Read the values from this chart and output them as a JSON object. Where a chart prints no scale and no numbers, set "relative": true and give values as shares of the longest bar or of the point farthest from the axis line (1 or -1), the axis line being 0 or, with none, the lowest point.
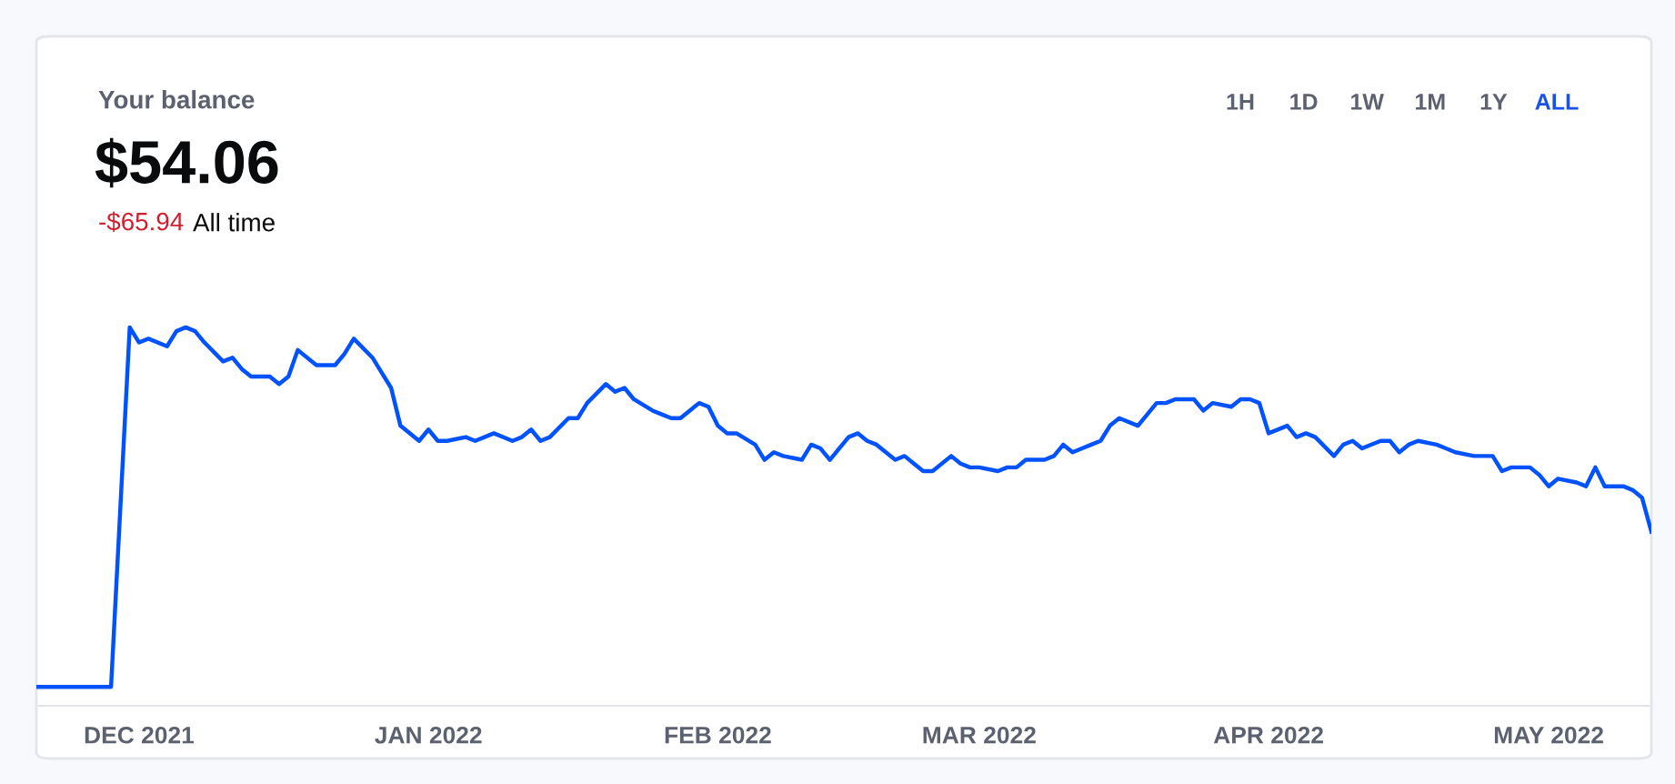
{
  "chart_data": {
    "type": "line",
    "relative": true,
    "legend": false,
    "grid": false,
    "marker": "none",
    "line_style": "solid",
    "annotations": [
      "Your balance",
      "$54.06",
      "-$65.94",
      "All time",
      "1H",
      "1D",
      "1W",
      "1M",
      "1Y",
      "ALL"
    ],
    "xlim": [
      "2021-11-20",
      "2022-05-12"
    ],
    "xticks": [
      {
        "value": "2021-12-01",
        "label": "DEC 2021"
      },
      {
        "value": "2022-01-01",
        "label": "JAN 2022"
      },
      {
        "value": "2022-02-01",
        "label": "FEB 2022"
      },
      {
        "value": "2022-03-01",
        "label": "MAR 2022"
      },
      {
        "value": "2022-04-01",
        "label": "APR 2022"
      },
      {
        "value": "2022-05-01",
        "label": "MAY 2022"
      }
    ],
    "series": [
      {
        "color": "#0052ff",
        "x": [
          "2021-11-20",
          "2021-11-28",
          "2021-11-30",
          "2021-12-01",
          "2021-12-02",
          "2021-12-04",
          "2021-12-05",
          "2021-12-06",
          "2021-12-07",
          "2021-12-08",
          "2021-12-10",
          "2021-12-11",
          "2021-12-12",
          "2021-12-13",
          "2021-12-15",
          "2021-12-16",
          "2021-12-17",
          "2021-12-18",
          "2021-12-20",
          "2021-12-21",
          "2021-12-22",
          "2021-12-23",
          "2021-12-24",
          "2021-12-26",
          "2021-12-27",
          "2021-12-28",
          "2021-12-29",
          "2021-12-31",
          "2022-01-01",
          "2022-01-02",
          "2022-01-03",
          "2022-01-05",
          "2022-01-06",
          "2022-01-07",
          "2022-01-08",
          "2022-01-10",
          "2022-01-11",
          "2022-01-12",
          "2022-01-13",
          "2022-01-14",
          "2022-01-16",
          "2022-01-17",
          "2022-01-18",
          "2022-01-20",
          "2022-01-21",
          "2022-01-22",
          "2022-01-23",
          "2022-01-25",
          "2022-01-26",
          "2022-01-27",
          "2022-01-28",
          "2022-01-30",
          "2022-01-31",
          "2022-02-01",
          "2022-02-02",
          "2022-02-03",
          "2022-02-05",
          "2022-02-06",
          "2022-02-07",
          "2022-02-08",
          "2022-02-10",
          "2022-02-11",
          "2022-02-12",
          "2022-02-13",
          "2022-02-15",
          "2022-02-16",
          "2022-02-17",
          "2022-02-18",
          "2022-02-20",
          "2022-02-21",
          "2022-02-22",
          "2022-02-23",
          "2022-02-24",
          "2022-02-26",
          "2022-02-27",
          "2022-02-28",
          "2022-03-01",
          "2022-03-03",
          "2022-03-04",
          "2022-03-05",
          "2022-03-06",
          "2022-03-08",
          "2022-03-09",
          "2022-03-10",
          "2022-03-11",
          "2022-03-13",
          "2022-03-14",
          "2022-03-15",
          "2022-03-16",
          "2022-03-18",
          "2022-03-19",
          "2022-03-20",
          "2022-03-21",
          "2022-03-22",
          "2022-03-24",
          "2022-03-25",
          "2022-03-26",
          "2022-03-28",
          "2022-03-29",
          "2022-03-30",
          "2022-03-31",
          "2022-04-01",
          "2022-04-03",
          "2022-04-04",
          "2022-04-05",
          "2022-04-06",
          "2022-04-08",
          "2022-04-09",
          "2022-04-10",
          "2022-04-11",
          "2022-04-13",
          "2022-04-14",
          "2022-04-15",
          "2022-04-16",
          "2022-04-17",
          "2022-04-19",
          "2022-04-20",
          "2022-04-21",
          "2022-04-23",
          "2022-04-24",
          "2022-04-25",
          "2022-04-26",
          "2022-04-27",
          "2022-04-29",
          "2022-04-30",
          "2022-05-01",
          "2022-05-02",
          "2022-05-04",
          "2022-05-05",
          "2022-05-06",
          "2022-05-07",
          "2022-05-09",
          "2022-05-10",
          "2022-05-11",
          "2022-05-12"
        ],
        "values": [
          0.05,
          0.05,
          1.0,
          0.96,
          0.97,
          0.95,
          0.99,
          1.0,
          0.99,
          0.96,
          0.91,
          0.92,
          0.89,
          0.87,
          0.87,
          0.85,
          0.87,
          0.94,
          0.9,
          0.9,
          0.9,
          0.93,
          0.97,
          0.92,
          0.88,
          0.84,
          0.74,
          0.7,
          0.73,
          0.7,
          0.7,
          0.71,
          0.7,
          0.71,
          0.72,
          0.7,
          0.71,
          0.73,
          0.7,
          0.71,
          0.76,
          0.76,
          0.8,
          0.85,
          0.83,
          0.84,
          0.81,
          0.78,
          0.77,
          0.76,
          0.76,
          0.8,
          0.79,
          0.74,
          0.72,
          0.72,
          0.69,
          0.65,
          0.67,
          0.66,
          0.65,
          0.69,
          0.68,
          0.65,
          0.71,
          0.72,
          0.7,
          0.69,
          0.65,
          0.66,
          0.64,
          0.62,
          0.62,
          0.66,
          0.64,
          0.63,
          0.63,
          0.62,
          0.63,
          0.63,
          0.65,
          0.65,
          0.66,
          0.69,
          0.67,
          0.69,
          0.7,
          0.74,
          0.76,
          0.74,
          0.77,
          0.8,
          0.8,
          0.81,
          0.81,
          0.78,
          0.8,
          0.79,
          0.81,
          0.81,
          0.8,
          0.72,
          0.74,
          0.71,
          0.72,
          0.71,
          0.66,
          0.69,
          0.7,
          0.68,
          0.7,
          0.7,
          0.67,
          0.69,
          0.7,
          0.69,
          0.68,
          0.67,
          0.66,
          0.66,
          0.66,
          0.62,
          0.63,
          0.63,
          0.61,
          0.58,
          0.6,
          0.59,
          0.58,
          0.63,
          0.58,
          0.58,
          0.57,
          0.55,
          0.46
        ]
      }
    ]
  }
}
